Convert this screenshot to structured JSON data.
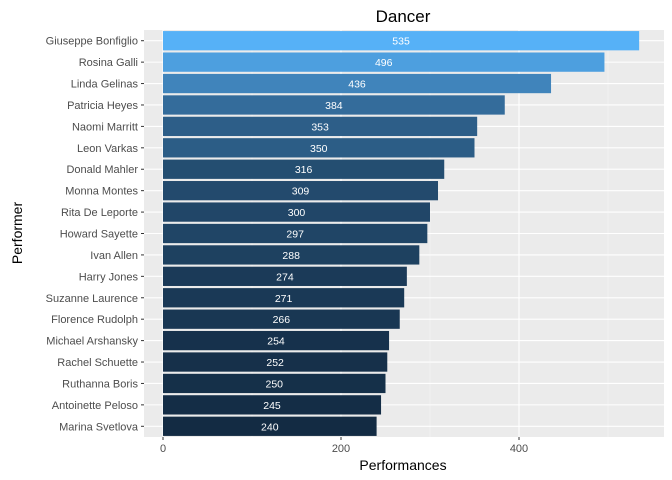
{
  "chart_data": {
    "type": "bar",
    "orientation": "horizontal",
    "title": "Dancer",
    "xlabel": "Performances",
    "ylabel": "Performer",
    "xlim": [
      0,
      562
    ],
    "x_ticks": [
      0,
      200,
      400
    ],
    "grid": true,
    "legend": "none",
    "color_low": "#132B43",
    "color_high": "#56B1F7",
    "panel_background": "#EBEBEB",
    "categories": [
      "Giuseppe Bonfiglio",
      "Rosina Galli",
      "Linda Gelinas",
      "Patricia Heyes",
      "Naomi Marritt",
      "Leon Varkas",
      "Donald Mahler",
      "Monna Montes",
      "Rita De Leporte",
      "Howard Sayette",
      "Ivan Allen",
      "Harry Jones",
      "Suzanne Laurence",
      "Florence Rudolph",
      "Michael Arshansky",
      "Rachel Schuette",
      "Ruthanna Boris",
      "Antoinette Peloso",
      "Marina Svetlova"
    ],
    "values": [
      535,
      496,
      436,
      384,
      353,
      350,
      316,
      309,
      300,
      297,
      288,
      274,
      271,
      266,
      254,
      252,
      250,
      245,
      240
    ]
  }
}
